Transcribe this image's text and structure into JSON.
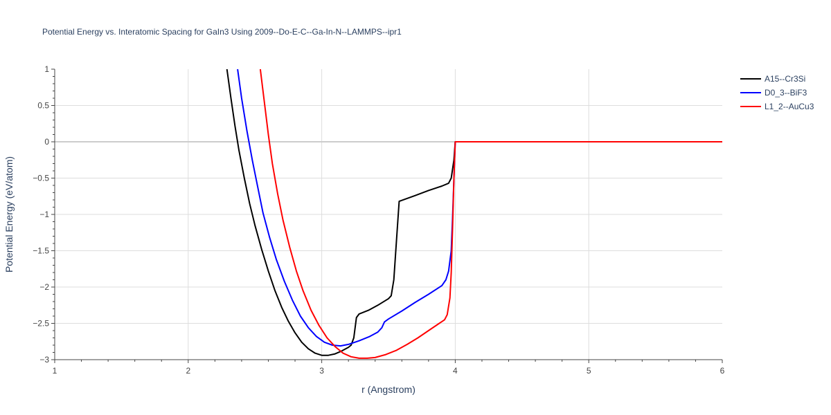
{
  "chart_data": {
    "type": "line",
    "title": "Potential Energy vs. Interatomic Spacing for GaIn3 Using 2009--Do-E-C--Ga-In-N--LAMMPS--ipr1",
    "xlabel": "r (Angstrom)",
    "ylabel": "Potential Energy (eV/atom)",
    "xlim": [
      1,
      6
    ],
    "ylim": [
      -3,
      1
    ],
    "x_ticks": [
      "1",
      "2",
      "3",
      "4",
      "5",
      "6"
    ],
    "y_ticks": [
      "−3",
      "−2.5",
      "−2",
      "−1.5",
      "−1",
      "−0.5",
      "0",
      "0.5",
      "1"
    ],
    "x_tick_values": [
      1,
      2,
      3,
      4,
      5,
      6
    ],
    "y_tick_values": [
      -3,
      -2.5,
      -2,
      -1.5,
      -1,
      -0.5,
      0,
      0.5,
      1
    ],
    "grid": true,
    "legend_position": "top-right",
    "series": [
      {
        "name": "A15--Cr3Si",
        "color": "#000000",
        "points": [
          [
            2.29,
            1.0
          ],
          [
            2.32,
            0.6
          ],
          [
            2.35,
            0.22
          ],
          [
            2.38,
            -0.12
          ],
          [
            2.42,
            -0.5
          ],
          [
            2.46,
            -0.85
          ],
          [
            2.5,
            -1.15
          ],
          [
            2.55,
            -1.48
          ],
          [
            2.6,
            -1.78
          ],
          [
            2.65,
            -2.05
          ],
          [
            2.7,
            -2.28
          ],
          [
            2.75,
            -2.47
          ],
          [
            2.8,
            -2.63
          ],
          [
            2.85,
            -2.76
          ],
          [
            2.9,
            -2.85
          ],
          [
            2.95,
            -2.91
          ],
          [
            3.0,
            -2.94
          ],
          [
            3.05,
            -2.94
          ],
          [
            3.1,
            -2.92
          ],
          [
            3.15,
            -2.88
          ],
          [
            3.2,
            -2.83
          ],
          [
            3.22,
            -2.8
          ],
          [
            3.24,
            -2.7
          ],
          [
            3.26,
            -2.42
          ],
          [
            3.28,
            -2.37
          ],
          [
            3.35,
            -2.32
          ],
          [
            3.42,
            -2.25
          ],
          [
            3.5,
            -2.16
          ],
          [
            3.52,
            -2.12
          ],
          [
            3.54,
            -1.9
          ],
          [
            3.56,
            -1.35
          ],
          [
            3.58,
            -0.82
          ],
          [
            3.7,
            -0.74
          ],
          [
            3.8,
            -0.67
          ],
          [
            3.9,
            -0.61
          ],
          [
            3.95,
            -0.57
          ],
          [
            3.97,
            -0.5
          ],
          [
            3.99,
            -0.25
          ],
          [
            4.0,
            0
          ],
          [
            6.0,
            0
          ]
        ]
      },
      {
        "name": "D0_3--BiF3",
        "color": "#0000ff",
        "points": [
          [
            2.37,
            1.0
          ],
          [
            2.4,
            0.6
          ],
          [
            2.44,
            0.15
          ],
          [
            2.48,
            -0.25
          ],
          [
            2.52,
            -0.62
          ],
          [
            2.56,
            -0.98
          ],
          [
            2.61,
            -1.32
          ],
          [
            2.66,
            -1.62
          ],
          [
            2.72,
            -1.92
          ],
          [
            2.78,
            -2.18
          ],
          [
            2.84,
            -2.4
          ],
          [
            2.9,
            -2.56
          ],
          [
            2.96,
            -2.68
          ],
          [
            3.02,
            -2.76
          ],
          [
            3.08,
            -2.8
          ],
          [
            3.14,
            -2.81
          ],
          [
            3.2,
            -2.79
          ],
          [
            3.28,
            -2.74
          ],
          [
            3.36,
            -2.68
          ],
          [
            3.42,
            -2.62
          ],
          [
            3.45,
            -2.56
          ],
          [
            3.47,
            -2.48
          ],
          [
            3.5,
            -2.44
          ],
          [
            3.6,
            -2.33
          ],
          [
            3.7,
            -2.21
          ],
          [
            3.8,
            -2.1
          ],
          [
            3.9,
            -1.98
          ],
          [
            3.93,
            -1.9
          ],
          [
            3.95,
            -1.78
          ],
          [
            3.97,
            -1.5
          ],
          [
            3.98,
            -1.05
          ],
          [
            3.99,
            -0.5
          ],
          [
            4.0,
            0
          ],
          [
            6.0,
            0
          ]
        ]
      },
      {
        "name": "L1_2--AuCu3",
        "color": "#ff0000",
        "points": [
          [
            2.54,
            1.0
          ],
          [
            2.57,
            0.55
          ],
          [
            2.6,
            0.1
          ],
          [
            2.63,
            -0.3
          ],
          [
            2.67,
            -0.72
          ],
          [
            2.71,
            -1.08
          ],
          [
            2.76,
            -1.45
          ],
          [
            2.81,
            -1.78
          ],
          [
            2.86,
            -2.05
          ],
          [
            2.92,
            -2.32
          ],
          [
            2.98,
            -2.53
          ],
          [
            3.04,
            -2.7
          ],
          [
            3.1,
            -2.82
          ],
          [
            3.16,
            -2.91
          ],
          [
            3.22,
            -2.96
          ],
          [
            3.28,
            -2.98
          ],
          [
            3.34,
            -2.98
          ],
          [
            3.4,
            -2.97
          ],
          [
            3.48,
            -2.93
          ],
          [
            3.56,
            -2.87
          ],
          [
            3.64,
            -2.79
          ],
          [
            3.72,
            -2.7
          ],
          [
            3.8,
            -2.6
          ],
          [
            3.88,
            -2.5
          ],
          [
            3.92,
            -2.45
          ],
          [
            3.94,
            -2.38
          ],
          [
            3.96,
            -2.15
          ],
          [
            3.97,
            -1.8
          ],
          [
            3.98,
            -1.2
          ],
          [
            3.99,
            -0.5
          ],
          [
            4.0,
            0
          ],
          [
            6.0,
            0
          ]
        ]
      }
    ]
  }
}
